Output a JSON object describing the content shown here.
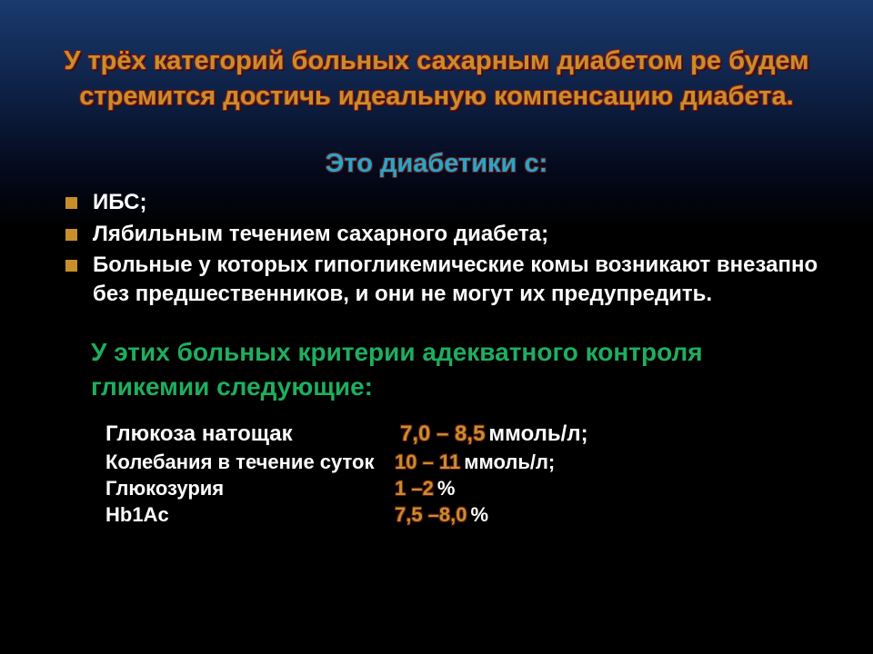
{
  "title": "У трёх категорий больных сахарным диабетом ре будем стремится достичь идеальную компенсацию диабета.",
  "subtitle": "Это диабетики с:",
  "bullets": [
    "ИБС;",
    "Лябильным течением сахарного диабета;",
    "Больные у которых гипогликемические комы возникают внезапно без предшественников, и они не могут их предупредить."
  ],
  "criteria_heading": "У этих больных критерии адекватного контроля гликемии следующие:",
  "criteria": [
    {
      "label": "Глюкоза натощак",
      "value": "7,0 – 8,5",
      "unit": "ммоль/л;",
      "label_width": 318,
      "fs": 24
    },
    {
      "label": "Колебания в течение суток",
      "value": "10 – 11",
      "unit": "ммоль/л;",
      "label_width": 312,
      "fs": 22
    },
    {
      "label": "Глюкозурия",
      "value": "1 –2",
      "unit": " %",
      "label_width": 312,
      "fs": 22
    },
    {
      "label": "Hb1Ac",
      "value": "7,5 –8,0",
      "unit": "%",
      "label_width": 312,
      "fs": 22
    }
  ],
  "colors": {
    "title": "#c78f2a",
    "subtitle": "#2aa4c7",
    "bullet_marker": "#c78f2a",
    "body_text": "#ffffff",
    "criteria_heading": "#1fae5e",
    "value": "#c78f2a",
    "bg_top": "#1a3a6e",
    "bg_bottom": "#000000"
  }
}
